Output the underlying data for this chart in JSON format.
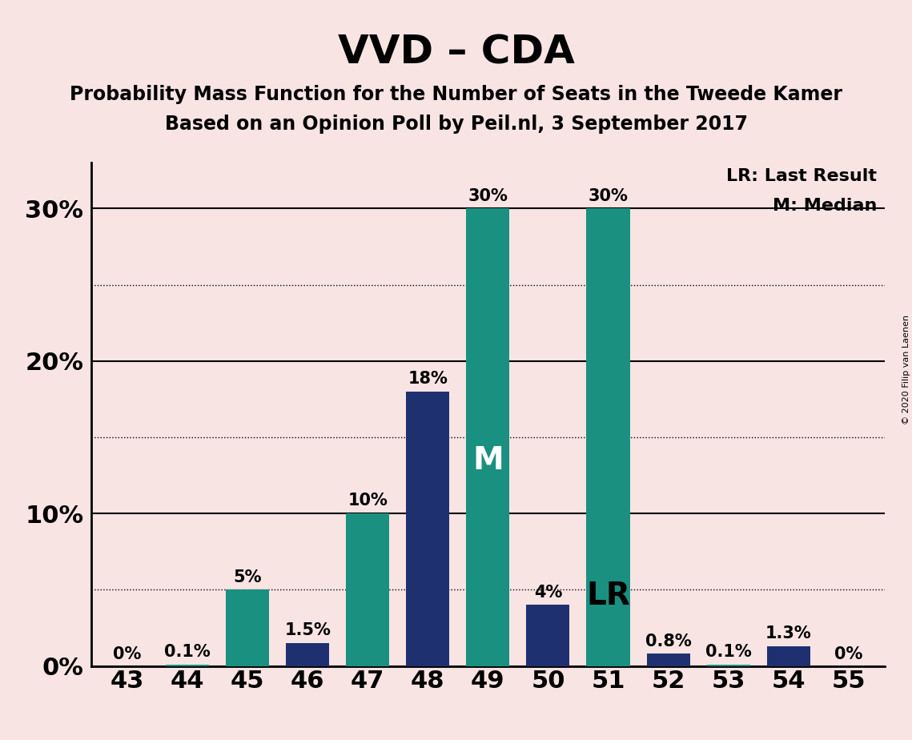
{
  "title": "VVD – CDA",
  "subtitle1": "Probability Mass Function for the Number of Seats in the Tweede Kamer",
  "subtitle2": "Based on an Opinion Poll by Peil.nl, 3 September 2017",
  "x_labels": [
    43,
    44,
    45,
    46,
    47,
    48,
    49,
    50,
    51,
    52,
    53,
    54,
    55
  ],
  "values": [
    0.0,
    0.1,
    5.0,
    1.5,
    10.0,
    18.0,
    30.0,
    4.0,
    30.0,
    0.8,
    0.1,
    1.3,
    0.0
  ],
  "bar_labels": [
    "0%",
    "0.1%",
    "5%",
    "1.5%",
    "10%",
    "18%",
    "30%",
    "4%",
    "30%",
    "0.8%",
    "0.1%",
    "1.3%",
    "0%"
  ],
  "colors": [
    "#1a9080",
    "#1a9080",
    "#1a9080",
    "#1f3070",
    "#1a9080",
    "#1f3070",
    "#1a9080",
    "#1f3070",
    "#1a9080",
    "#1f3070",
    "#1a9080",
    "#1f3070",
    "#1a9080"
  ],
  "background_color": "#f9e4e4",
  "teal_color": "#1a9080",
  "navy_color": "#1f3070",
  "solid_yticks": [
    0,
    10,
    20,
    30
  ],
  "dotted_yticks": [
    5,
    15,
    25
  ],
  "ylim": [
    0,
    33
  ],
  "median_bar_idx": 6,
  "lr_bar_idx": 8,
  "median_label": "M",
  "lr_label": "LR",
  "legend_lr": "LR: Last Result",
  "legend_m": "M: Median",
  "copyright_text": "© 2020 Filip van Laenen",
  "title_fontsize": 36,
  "subtitle_fontsize": 17,
  "axis_tick_fontsize": 22,
  "bar_label_fontsize": 15,
  "legend_fontsize": 16,
  "inner_label_fontsize": 28
}
